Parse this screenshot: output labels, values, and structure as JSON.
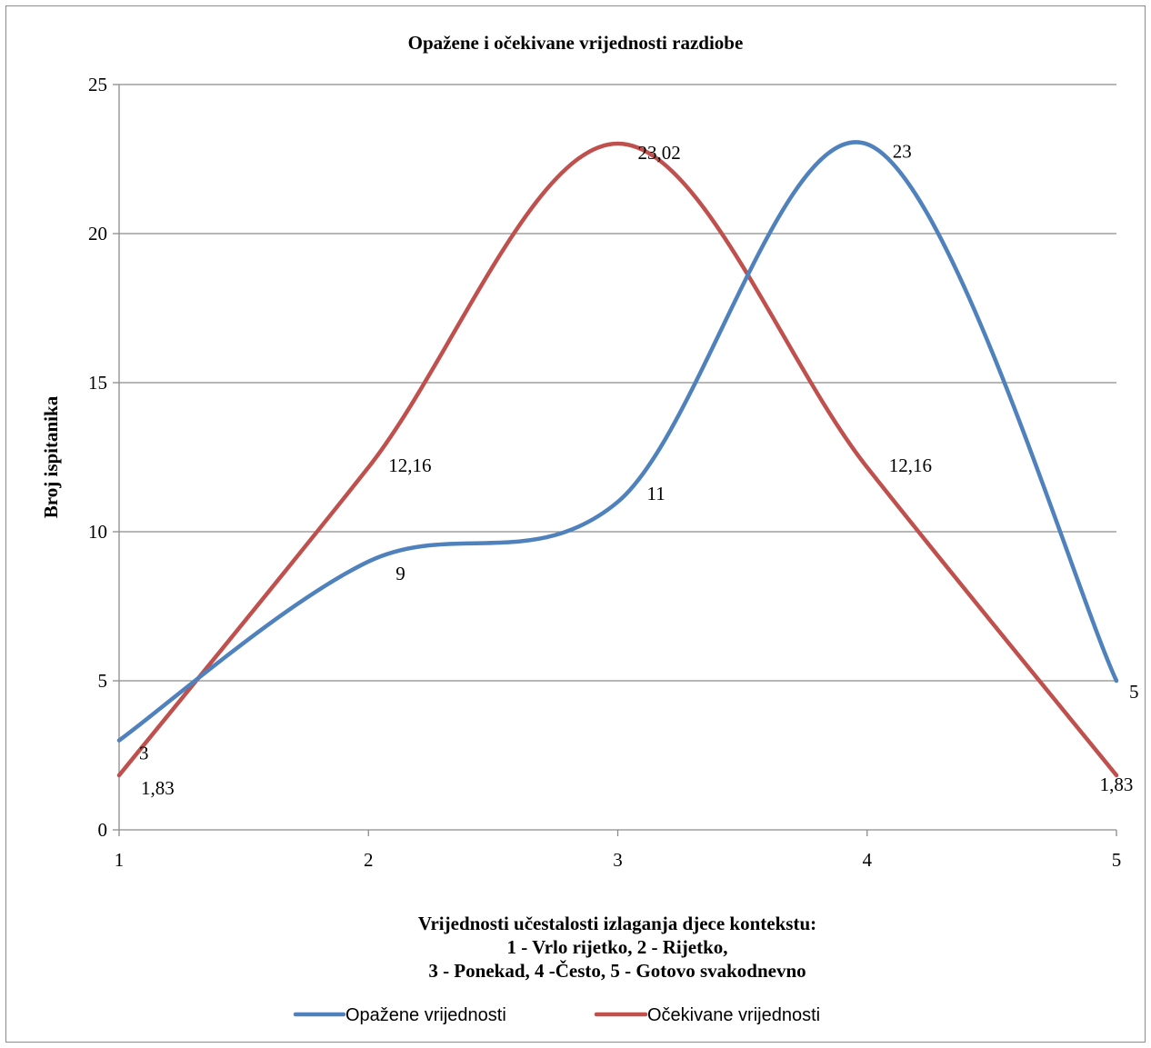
{
  "chart_data": {
    "type": "line",
    "title": "Opažene i očekivane vrijednosti razdiobe",
    "xlabel": [
      "Vrijednosti učestalosti izlaganja djece kontekstu:",
      "1 - Vrlo rijetko, 2 - Rijetko,",
      "3 - Ponekad, 4 -Često, 5 - Gotovo svakodnevno"
    ],
    "ylabel": "Broj ispitanika",
    "x": [
      1,
      2,
      3,
      4,
      5
    ],
    "x_tick_labels": [
      "1",
      "2",
      "3",
      "4",
      "5"
    ],
    "y_ticks": [
      0,
      5,
      10,
      15,
      20,
      25
    ],
    "y_tick_labels": [
      "0",
      "5",
      "10",
      "15",
      "20",
      "25"
    ],
    "xlim": [
      1,
      5
    ],
    "ylim": [
      0,
      25
    ],
    "grid": "horizontal",
    "smooth": true,
    "legend_position": "bottom",
    "series": [
      {
        "name": "Opažene vrijednosti",
        "color": "#4f81bd",
        "values": [
          3,
          9,
          11,
          23,
          5
        ],
        "data_labels": [
          "3",
          "9",
          "11",
          "23",
          "5"
        ]
      },
      {
        "name": "Očekivane vrijednosti",
        "color": "#c0504d",
        "values": [
          1.83,
          12.16,
          23.02,
          12.16,
          1.83
        ],
        "data_labels": [
          "1,83",
          "12,16",
          "23,02",
          "12,16",
          "1,83"
        ]
      }
    ]
  }
}
